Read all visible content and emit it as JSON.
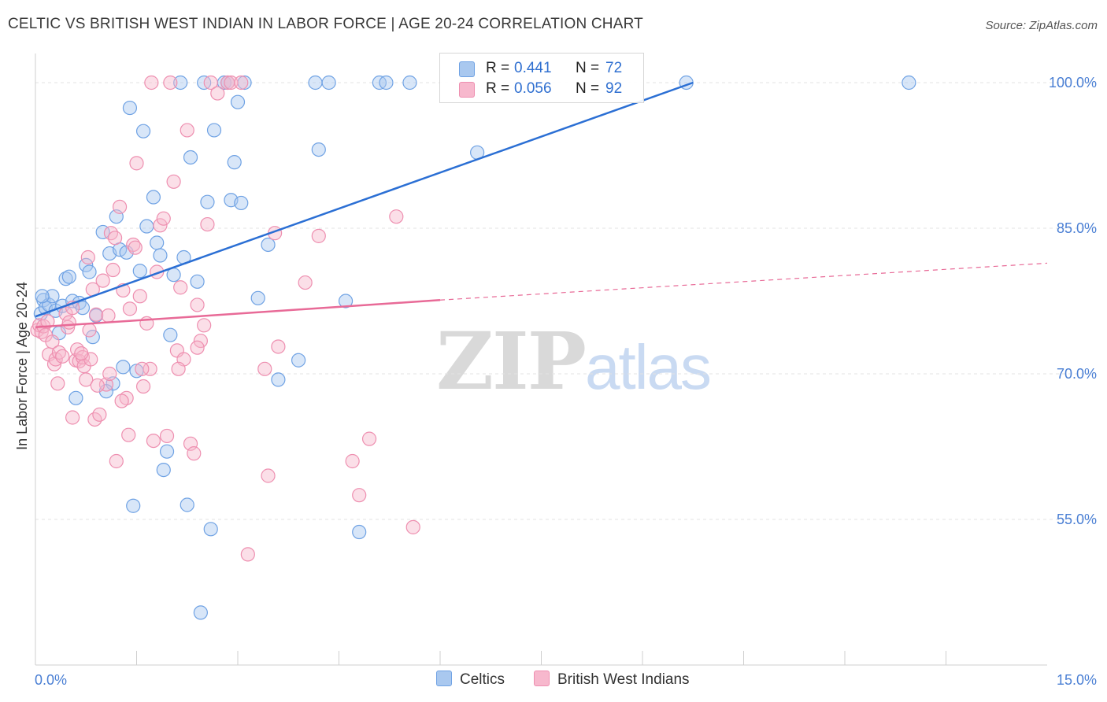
{
  "header": {
    "title": "CELTIC VS BRITISH WEST INDIAN IN LABOR FORCE | AGE 20-24 CORRELATION CHART",
    "source": "Source: ZipAtlas.com"
  },
  "watermark": {
    "zip": "ZIP",
    "atlas": "atlas"
  },
  "legend": {
    "rows": [
      {
        "r_label": "R =",
        "r_value": "0.441",
        "n_label": "N =",
        "n_value": "72",
        "color": "#a9c8ef"
      },
      {
        "r_label": "R =",
        "r_value": "0.056",
        "n_label": "N =",
        "n_value": "92",
        "color": "#f7b8cd"
      }
    ]
  },
  "bottom_legend": {
    "items": [
      {
        "label": "Celtics",
        "color": "#a9c8ef"
      },
      {
        "label": "British West Indians",
        "color": "#f7b8cd"
      }
    ]
  },
  "chart_data": {
    "type": "scatter",
    "title": "CELTIC VS BRITISH WEST INDIAN IN LABOR FORCE | AGE 20-24 CORRELATION CHART",
    "xlabel": "",
    "ylabel": "In Labor Force | Age 20-24",
    "xlim": [
      0,
      15
    ],
    "ylim": [
      40,
      103
    ],
    "x_tick_labels": [
      "0.0%",
      "15.0%"
    ],
    "y_ticks": [
      55,
      70,
      85,
      100
    ],
    "y_tick_labels": [
      "55.0%",
      "70.0%",
      "85.0%",
      "100.0%"
    ],
    "grid": true,
    "legend_position": "top-center",
    "series": [
      {
        "name": "Celtics",
        "color": "#6fa2e4",
        "fill": "#a9c8ef",
        "trend": {
          "x": [
            0.0,
            9.75
          ],
          "y": [
            75.9,
            100.0
          ],
          "style": "solid",
          "color": "#2b6fd4"
        },
        "points": [
          [
            0.08,
            76.2
          ],
          [
            0.12,
            77.6
          ],
          [
            0.15,
            76.8
          ],
          [
            0.2,
            77.1
          ],
          [
            0.25,
            78.0
          ],
          [
            0.3,
            76.5
          ],
          [
            0.35,
            74.2
          ],
          [
            0.4,
            77.0
          ],
          [
            0.45,
            79.8
          ],
          [
            0.5,
            80.0
          ],
          [
            0.55,
            77.5
          ],
          [
            0.6,
            67.5
          ],
          [
            0.65,
            77.3
          ],
          [
            0.7,
            76.8
          ],
          [
            0.75,
            81.2
          ],
          [
            0.8,
            80.5
          ],
          [
            0.85,
            73.8
          ],
          [
            0.9,
            76.0
          ],
          [
            1.0,
            84.6
          ],
          [
            1.1,
            82.4
          ],
          [
            1.15,
            69.0
          ],
          [
            1.2,
            86.2
          ],
          [
            1.25,
            82.8
          ],
          [
            1.3,
            70.7
          ],
          [
            1.35,
            82.5
          ],
          [
            1.4,
            97.4
          ],
          [
            1.45,
            56.4
          ],
          [
            1.5,
            70.3
          ],
          [
            1.55,
            80.6
          ],
          [
            1.6,
            95.0
          ],
          [
            1.65,
            85.2
          ],
          [
            1.75,
            88.2
          ],
          [
            1.8,
            83.5
          ],
          [
            1.85,
            82.2
          ],
          [
            1.9,
            60.1
          ],
          [
            1.95,
            62.0
          ],
          [
            2.0,
            74.0
          ],
          [
            2.05,
            80.2
          ],
          [
            2.15,
            100.0
          ],
          [
            2.2,
            82.0
          ],
          [
            2.25,
            56.5
          ],
          [
            2.3,
            92.3
          ],
          [
            2.4,
            79.5
          ],
          [
            2.45,
            45.4
          ],
          [
            2.5,
            100.0
          ],
          [
            2.55,
            87.7
          ],
          [
            2.6,
            54.0
          ],
          [
            2.65,
            95.1
          ],
          [
            2.8,
            100.0
          ],
          [
            2.85,
            100.0
          ],
          [
            2.9,
            87.9
          ],
          [
            2.95,
            91.8
          ],
          [
            3.0,
            98.0
          ],
          [
            3.05,
            87.6
          ],
          [
            3.1,
            100.0
          ],
          [
            3.3,
            77.8
          ],
          [
            3.45,
            83.3
          ],
          [
            3.6,
            69.4
          ],
          [
            3.9,
            71.4
          ],
          [
            4.15,
            100.0
          ],
          [
            4.2,
            93.1
          ],
          [
            4.35,
            100.0
          ],
          [
            4.6,
            77.5
          ],
          [
            4.8,
            53.7
          ],
          [
            5.1,
            100.0
          ],
          [
            5.2,
            100.0
          ],
          [
            5.55,
            100.0
          ],
          [
            6.55,
            92.8
          ],
          [
            9.65,
            100.0
          ],
          [
            12.95,
            100.0
          ],
          [
            0.1,
            78.0
          ],
          [
            1.05,
            68.2
          ]
        ]
      },
      {
        "name": "British West Indians",
        "color": "#ee8fb0",
        "fill": "#f7b8cd",
        "trend": {
          "x": [
            0.0,
            6.0,
            15.0
          ],
          "y": [
            74.8,
            77.6,
            81.4
          ],
          "style": "solid-then-dashed",
          "color": "#e86a97"
        },
        "points": [
          [
            0.03,
            74.5
          ],
          [
            0.06,
            75.0
          ],
          [
            0.09,
            74.3
          ],
          [
            0.12,
            74.9
          ],
          [
            0.15,
            74.0
          ],
          [
            0.18,
            75.4
          ],
          [
            0.2,
            72.0
          ],
          [
            0.25,
            73.3
          ],
          [
            0.28,
            71.0
          ],
          [
            0.3,
            71.5
          ],
          [
            0.33,
            69.0
          ],
          [
            0.35,
            72.2
          ],
          [
            0.4,
            71.8
          ],
          [
            0.45,
            76.2
          ],
          [
            0.48,
            74.8
          ],
          [
            0.5,
            75.3
          ],
          [
            0.55,
            65.5
          ],
          [
            0.6,
            71.4
          ],
          [
            0.62,
            72.5
          ],
          [
            0.65,
            71.3
          ],
          [
            0.7,
            71.7
          ],
          [
            0.72,
            70.8
          ],
          [
            0.75,
            69.4
          ],
          [
            0.78,
            82.0
          ],
          [
            0.8,
            74.5
          ],
          [
            0.82,
            71.5
          ],
          [
            0.85,
            78.7
          ],
          [
            0.88,
            65.3
          ],
          [
            0.9,
            76.1
          ],
          [
            0.95,
            65.8
          ],
          [
            1.0,
            79.6
          ],
          [
            1.05,
            68.9
          ],
          [
            1.1,
            70.0
          ],
          [
            1.12,
            84.5
          ],
          [
            1.15,
            80.7
          ],
          [
            1.2,
            61.0
          ],
          [
            1.25,
            87.2
          ],
          [
            1.3,
            78.6
          ],
          [
            1.35,
            67.5
          ],
          [
            1.38,
            63.7
          ],
          [
            1.4,
            76.7
          ],
          [
            1.45,
            83.3
          ],
          [
            1.5,
            91.7
          ],
          [
            1.55,
            78.0
          ],
          [
            1.6,
            68.7
          ],
          [
            1.65,
            75.2
          ],
          [
            1.7,
            70.5
          ],
          [
            1.75,
            63.1
          ],
          [
            1.8,
            80.5
          ],
          [
            1.85,
            85.3
          ],
          [
            1.95,
            63.6
          ],
          [
            2.05,
            89.8
          ],
          [
            2.1,
            72.4
          ],
          [
            2.15,
            78.9
          ],
          [
            2.2,
            71.5
          ],
          [
            2.25,
            95.1
          ],
          [
            2.3,
            62.8
          ],
          [
            2.35,
            61.8
          ],
          [
            2.4,
            77.1
          ],
          [
            2.45,
            73.4
          ],
          [
            2.5,
            75.0
          ],
          [
            2.55,
            85.4
          ],
          [
            2.6,
            100.0
          ],
          [
            2.7,
            98.9
          ],
          [
            2.85,
            100.0
          ],
          [
            2.9,
            100.0
          ],
          [
            3.05,
            100.0
          ],
          [
            3.15,
            51.4
          ],
          [
            3.4,
            70.5
          ],
          [
            3.45,
            59.5
          ],
          [
            3.55,
            84.5
          ],
          [
            3.6,
            72.8
          ],
          [
            4.0,
            79.4
          ],
          [
            4.2,
            84.2
          ],
          [
            4.7,
            61.0
          ],
          [
            4.8,
            57.5
          ],
          [
            4.95,
            63.3
          ],
          [
            5.35,
            86.2
          ],
          [
            5.6,
            54.2
          ],
          [
            0.55,
            76.8
          ],
          [
            0.68,
            72.1
          ],
          [
            0.92,
            68.8
          ],
          [
            1.08,
            76.0
          ],
          [
            1.18,
            84.0
          ],
          [
            1.28,
            67.2
          ],
          [
            1.48,
            83.0
          ],
          [
            1.58,
            70.5
          ],
          [
            1.72,
            100.0
          ],
          [
            1.9,
            86.0
          ],
          [
            2.0,
            100.0
          ],
          [
            2.12,
            70.5
          ],
          [
            2.4,
            72.7
          ]
        ]
      }
    ]
  }
}
